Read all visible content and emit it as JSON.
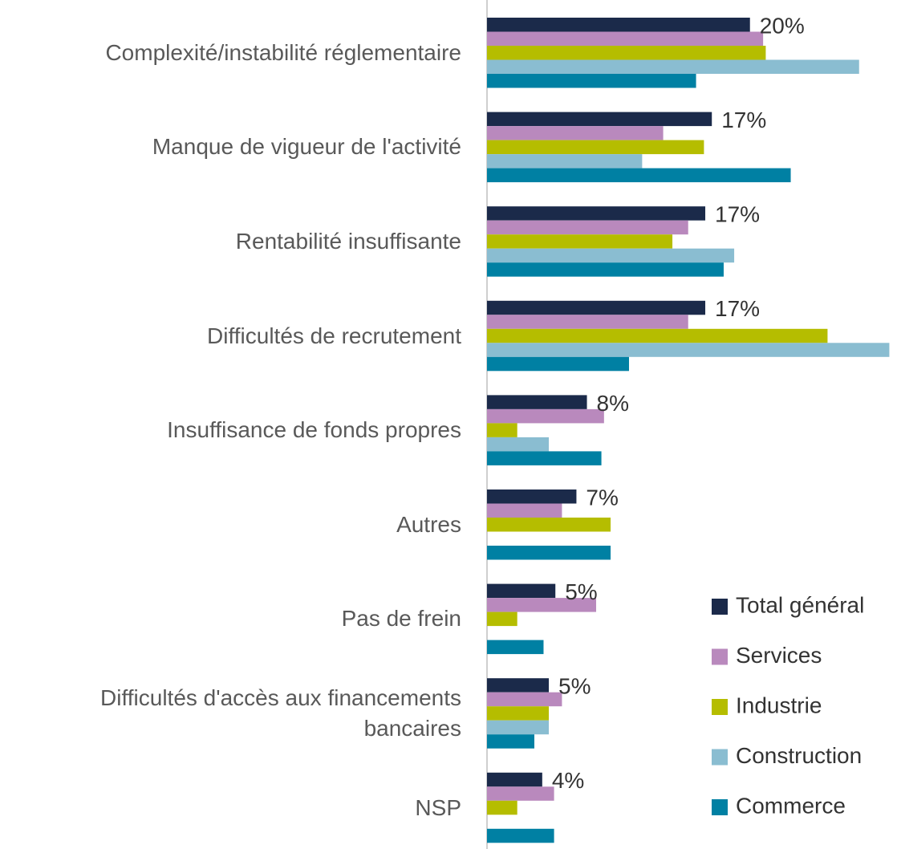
{
  "chart_data": {
    "type": "hbar",
    "categories": [
      "Complexité/instabilité réglementaire",
      "Manque de vigueur de l'activité",
      "Rentabilité insuffisante",
      "Difficultés de recrutement",
      "Insuffisance de fonds propres",
      "Autres",
      "Pas de frein",
      "Difficultés d'accès aux financements bancaires",
      "NSP"
    ],
    "series": [
      {
        "name": "Total général",
        "color": "#1b2a4a",
        "values": [
          20.0,
          17.1,
          16.6,
          16.6,
          7.6,
          6.8,
          5.2,
          4.7,
          4.2
        ],
        "value_labels": [
          "20%",
          "17%",
          "17%",
          "17%",
          "8%",
          "7%",
          "5%",
          "5%",
          "4%"
        ]
      },
      {
        "name": "Services",
        "color": "#b989bd",
        "values": [
          21.0,
          13.4,
          15.3,
          15.3,
          8.9,
          5.7,
          8.3,
          5.7,
          5.1
        ]
      },
      {
        "name": "Industrie",
        "color": "#b5bd00",
        "values": [
          21.2,
          16.5,
          14.1,
          25.9,
          2.3,
          9.4,
          2.3,
          4.7,
          2.3
        ]
      },
      {
        "name": "Construction",
        "color": "#8abdd1",
        "values": [
          28.3,
          11.8,
          18.8,
          30.6,
          4.7,
          0,
          0,
          4.7,
          0
        ]
      },
      {
        "name": "Commerce",
        "color": "#0080a3",
        "values": [
          15.9,
          23.1,
          18.0,
          10.8,
          8.7,
          9.4,
          4.3,
          3.6,
          5.1
        ]
      }
    ],
    "xlim": [
      0,
      31
    ],
    "legend": "bottom-right"
  }
}
